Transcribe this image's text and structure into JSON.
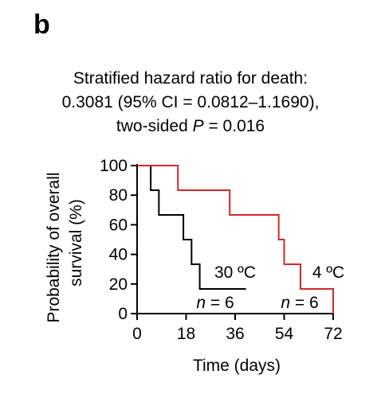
{
  "panel_label": "b",
  "stats": {
    "line1": "Stratified hazard ratio for death:",
    "line2": "0.3081 (95% CI = 0.0812–1.1690),",
    "line3_pre": "two-sided ",
    "line3_italic": "P",
    "line3_post": " = 0.016"
  },
  "chart_data": {
    "type": "line",
    "subtype": "kaplan-meier step plot",
    "xlabel": "Time (days)",
    "ylabel_line1": "Probability of overall",
    "ylabel_line2": "survival (%)",
    "xlim": [
      0,
      72
    ],
    "ylim": [
      0,
      100
    ],
    "xticks": [
      0,
      18,
      36,
      54,
      72
    ],
    "yticks": [
      0,
      20,
      40,
      60,
      80,
      100
    ],
    "grid": false,
    "series": [
      {
        "name": "30 ºC",
        "n_prefix": "n",
        "n_value": " = 6",
        "color": "#000000",
        "steps": [
          [
            0,
            100
          ],
          [
            5,
            83.3
          ],
          [
            8,
            66.7
          ],
          [
            17,
            50
          ],
          [
            20,
            33.3
          ],
          [
            23,
            16.7
          ],
          [
            40,
            16.7
          ]
        ]
      },
      {
        "name": "4 ºC",
        "n_prefix": "n",
        "n_value": " = 6",
        "color": "#d0282c",
        "steps": [
          [
            0,
            100
          ],
          [
            15,
            83.3
          ],
          [
            34,
            66.7
          ],
          [
            52,
            50
          ],
          [
            54,
            33.3
          ],
          [
            60,
            16.7
          ],
          [
            72,
            0
          ]
        ]
      }
    ]
  }
}
